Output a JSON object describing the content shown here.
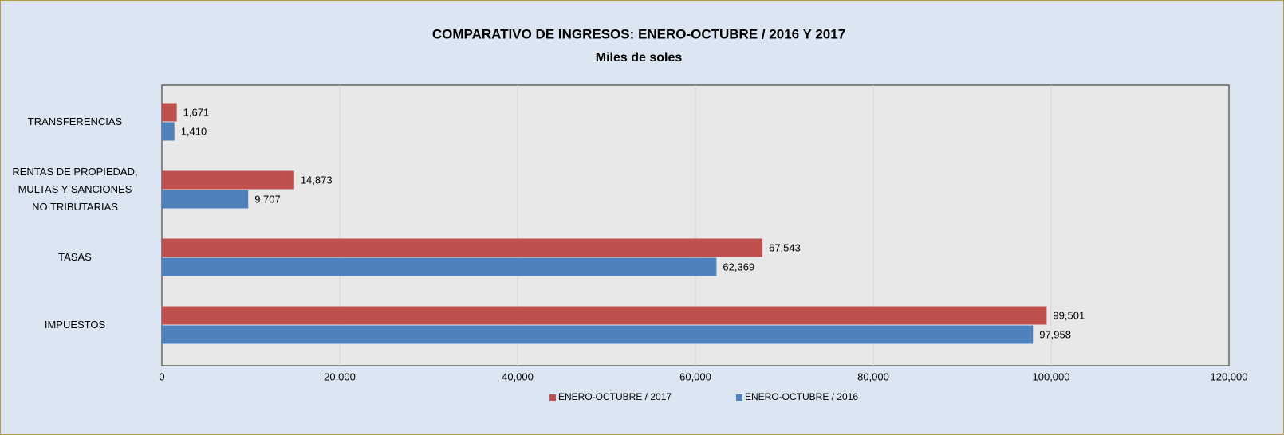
{
  "chart_data": {
    "type": "hbar",
    "title": "COMPARATIVO DE INGRESOS: ENERO-OCTUBRE / 2016 Y 2017",
    "subtitle": "Miles de soles",
    "categories": [
      "TRANSFERENCIAS",
      "RENTAS DE PROPIEDAD,\nMULTAS Y SANCIONES\nNO TRIBUTARIAS",
      "TASAS",
      "IMPUESTOS"
    ],
    "series": [
      {
        "name": "ENERO-OCTUBRE / 2017",
        "color": "#c0504d",
        "values": [
          1671,
          14873,
          67543,
          99501
        ],
        "value_labels": [
          "1,671",
          "14,873",
          "67,543",
          "99,501"
        ]
      },
      {
        "name": "ENERO-OCTUBRE / 2016",
        "color": "#4f81bd",
        "values": [
          1410,
          9707,
          62369,
          97958
        ],
        "value_labels": [
          "1,410",
          "9,707",
          "62,369",
          "97,958"
        ]
      }
    ],
    "xlim": [
      0,
      120000
    ],
    "xticks": [
      0,
      {
        "value": 20000,
        "label": "20,000"
      },
      {
        "value": 40000,
        "label": "40,000"
      },
      {
        "value": 60000,
        "label": "60,000"
      },
      {
        "value": 80000,
        "label": "80,000"
      },
      {
        "value": 100000,
        "label": "100,000"
      },
      {
        "value": 120000,
        "label": "120,000"
      }
    ],
    "grid": true,
    "legend": "bottom"
  }
}
